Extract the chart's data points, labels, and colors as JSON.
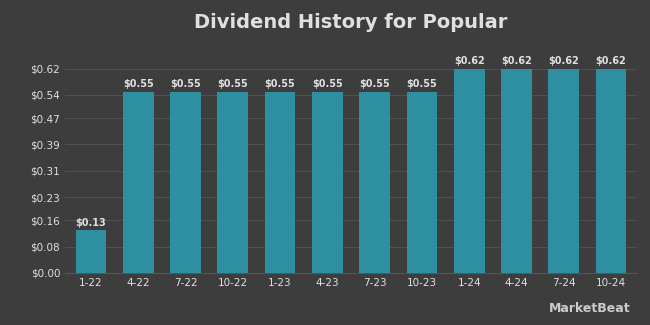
{
  "title": "Dividend History for Popular",
  "categories": [
    "1-22",
    "4-22",
    "7-22",
    "10-22",
    "1-23",
    "4-23",
    "7-23",
    "10-23",
    "1-24",
    "4-24",
    "7-24",
    "10-24"
  ],
  "values": [
    0.13,
    0.55,
    0.55,
    0.55,
    0.55,
    0.55,
    0.55,
    0.55,
    0.62,
    0.62,
    0.62,
    0.62
  ],
  "bar_color": "#2e8fa0",
  "background_color": "#3d3d3d",
  "text_color": "#e0e0e0",
  "grid_color": "#555555",
  "yticks": [
    0.0,
    0.08,
    0.16,
    0.23,
    0.31,
    0.39,
    0.47,
    0.54,
    0.62
  ],
  "ytick_labels": [
    "$0.00",
    "$0.08",
    "$0.16",
    "$0.23",
    "$0.31",
    "$0.39",
    "$0.47",
    "$0.54",
    "$0.62"
  ],
  "ylim": [
    0,
    0.7
  ],
  "title_fontsize": 14,
  "label_fontsize": 7.5,
  "bar_label_fontsize": 7,
  "watermark": "MarketBeat"
}
